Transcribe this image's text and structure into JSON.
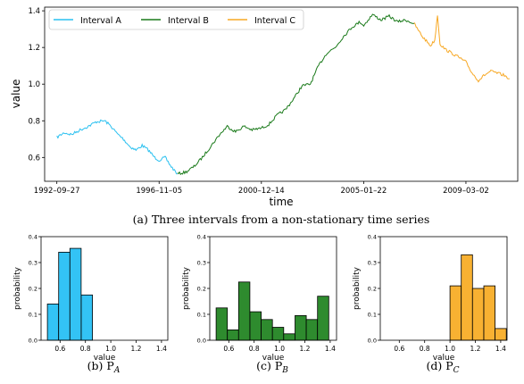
{
  "figure": {
    "caption_main": "(a) Three intervals from a non-stationary time series",
    "caption_b": "(b) P",
    "caption_b_sub": "A",
    "caption_c": "(c) P",
    "caption_c_sub": "B",
    "caption_d": "(d) P",
    "caption_d_sub": "C"
  },
  "chart_data": [
    {
      "type": "line",
      "title": "",
      "xlabel": "time",
      "ylabel": "value",
      "x_tick_labels": [
        "1992–09–27",
        "1996–11–05",
        "2000–12–14",
        "2005–01–22",
        "2009–03–02"
      ],
      "x_ticks": [
        "1992-09-27",
        "1996-11-05",
        "2000-12-14",
        "2005-01-22",
        "2009-03-02"
      ],
      "yticks": [
        "0.6",
        "0.8",
        "1.0",
        "1.2",
        "1.4"
      ],
      "ylim": [
        0.47,
        1.42
      ],
      "xlim": [
        "1992-04-01",
        "2011-04-01"
      ],
      "legend_position": "top-left",
      "colors": {
        "Interval A": "#29c0f0",
        "Interval B": "#1a7a1a",
        "Interval C": "#f7a824"
      },
      "series": [
        {
          "name": "Interval A",
          "points": [
            [
              "1992-09-27",
              0.71
            ],
            [
              "1993-01-15",
              0.735
            ],
            [
              "1993-05-01",
              0.725
            ],
            [
              "1993-09-01",
              0.75
            ],
            [
              "1994-01-01",
              0.77
            ],
            [
              "1994-05-01",
              0.795
            ],
            [
              "1994-09-01",
              0.8
            ],
            [
              "1994-12-01",
              0.77
            ],
            [
              "1995-03-01",
              0.73
            ],
            [
              "1995-06-01",
              0.7
            ],
            [
              "1995-09-01",
              0.66
            ],
            [
              "1995-12-01",
              0.64
            ],
            [
              "1996-03-01",
              0.665
            ],
            [
              "1996-06-01",
              0.64
            ],
            [
              "1996-09-01",
              0.6
            ],
            [
              "1996-11-05",
              0.585
            ],
            [
              "1997-02-01",
              0.6
            ],
            [
              "1997-05-01",
              0.55
            ],
            [
              "1997-08-01",
              0.51
            ]
          ]
        },
        {
          "name": "Interval B",
          "points": [
            [
              "1997-08-01",
              0.51
            ],
            [
              "1997-12-01",
              0.52
            ],
            [
              "1998-04-01",
              0.55
            ],
            [
              "1998-08-01",
              0.6
            ],
            [
              "1998-12-01",
              0.66
            ],
            [
              "1999-04-01",
              0.72
            ],
            [
              "1999-08-01",
              0.77
            ],
            [
              "1999-12-01",
              0.74
            ],
            [
              "2000-04-01",
              0.77
            ],
            [
              "2000-08-01",
              0.75
            ],
            [
              "2000-12-14",
              0.76
            ],
            [
              "2001-04-01",
              0.78
            ],
            [
              "2001-08-01",
              0.83
            ],
            [
              "2001-12-01",
              0.86
            ],
            [
              "2002-04-01",
              0.92
            ],
            [
              "2002-08-01",
              0.99
            ],
            [
              "2002-12-01",
              1.0
            ],
            [
              "2003-04-01",
              1.1
            ],
            [
              "2003-08-01",
              1.17
            ],
            [
              "2003-12-01",
              1.2
            ],
            [
              "2004-04-01",
              1.26
            ],
            [
              "2004-08-01",
              1.31
            ],
            [
              "2004-12-01",
              1.34
            ],
            [
              "2005-01-22",
              1.32
            ],
            [
              "2005-06-01",
              1.38
            ],
            [
              "2005-10-01",
              1.35
            ],
            [
              "2006-02-01",
              1.37
            ],
            [
              "2006-06-01",
              1.34
            ],
            [
              "2006-10-01",
              1.35
            ],
            [
              "2007-02-01",
              1.33
            ]
          ]
        },
        {
          "name": "Interval C",
          "points": [
            [
              "2007-02-01",
              1.33
            ],
            [
              "2007-06-01",
              1.26
            ],
            [
              "2007-10-01",
              1.21
            ],
            [
              "2007-12-01",
              1.24
            ],
            [
              "2008-01-10",
              1.38
            ],
            [
              "2008-02-15",
              1.22
            ],
            [
              "2008-05-01",
              1.19
            ],
            [
              "2008-08-01",
              1.17
            ],
            [
              "2008-11-01",
              1.15
            ],
            [
              "2009-03-02",
              1.12
            ],
            [
              "2009-06-01",
              1.06
            ],
            [
              "2009-09-01",
              1.02
            ],
            [
              "2009-12-01",
              1.05
            ],
            [
              "2010-03-01",
              1.07
            ],
            [
              "2010-06-01",
              1.06
            ],
            [
              "2010-09-01",
              1.05
            ],
            [
              "2010-12-01",
              1.03
            ]
          ]
        }
      ]
    },
    {
      "type": "bar",
      "title": "",
      "xlabel": "value",
      "ylabel": "probability",
      "color": "#33c3f5",
      "xticks": [
        "0.6",
        "0.8",
        "1.0",
        "1.2",
        "1.4"
      ],
      "yticks": [
        "0.0",
        "0.1",
        "0.2",
        "0.3",
        "0.4"
      ],
      "xlim": [
        0.45,
        1.45
      ],
      "ylim": [
        0,
        0.4
      ],
      "bin_width": 0.0889,
      "bins": [
        {
          "x0": 0.5,
          "value": 0.14
        },
        {
          "x0": 0.5889,
          "value": 0.34
        },
        {
          "x0": 0.6778,
          "value": 0.355
        },
        {
          "x0": 0.7667,
          "value": 0.175
        }
      ]
    },
    {
      "type": "bar",
      "title": "",
      "xlabel": "value",
      "ylabel": "probability",
      "color": "#2e8b2e",
      "xticks": [
        "0.6",
        "0.8",
        "1.0",
        "1.2",
        "1.4"
      ],
      "yticks": [
        "0.0",
        "0.1",
        "0.2",
        "0.3",
        "0.4"
      ],
      "xlim": [
        0.45,
        1.45
      ],
      "ylim": [
        0,
        0.4
      ],
      "bin_width": 0.0889,
      "bins": [
        {
          "x0": 0.5,
          "value": 0.125
        },
        {
          "x0": 0.5889,
          "value": 0.04
        },
        {
          "x0": 0.6778,
          "value": 0.225
        },
        {
          "x0": 0.7667,
          "value": 0.11
        },
        {
          "x0": 0.8556,
          "value": 0.08
        },
        {
          "x0": 0.9444,
          "value": 0.05
        },
        {
          "x0": 1.0333,
          "value": 0.025
        },
        {
          "x0": 1.1222,
          "value": 0.095
        },
        {
          "x0": 1.2111,
          "value": 0.08
        },
        {
          "x0": 1.3,
          "value": 0.17
        }
      ]
    },
    {
      "type": "bar",
      "title": "",
      "xlabel": "value",
      "ylabel": "probability",
      "color": "#f8b132",
      "xticks": [
        "0.6",
        "0.8",
        "1.0",
        "1.2",
        "1.4"
      ],
      "yticks": [
        "0.0",
        "0.1",
        "0.2",
        "0.3",
        "0.4"
      ],
      "xlim": [
        0.45,
        1.45
      ],
      "ylim": [
        0,
        0.4
      ],
      "bin_width": 0.0889,
      "bins": [
        {
          "x0": 1.0,
          "value": 0.21
        },
        {
          "x0": 1.0889,
          "value": 0.33
        },
        {
          "x0": 1.1778,
          "value": 0.2
        },
        {
          "x0": 1.2667,
          "value": 0.21
        },
        {
          "x0": 1.3556,
          "value": 0.045
        }
      ]
    }
  ]
}
